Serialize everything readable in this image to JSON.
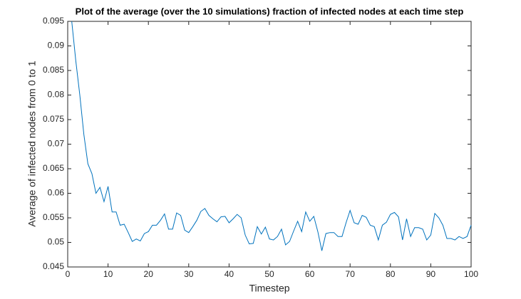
{
  "chart_data": {
    "type": "line",
    "title": "Plot of the average (over the 10 simulations) fraction of infected nodes at each time step",
    "x_label": "Timestep",
    "y_label": "Average of infected nodes from 0 to 1",
    "x": [
      1,
      2,
      3,
      4,
      5,
      6,
      7,
      8,
      9,
      10,
      11,
      12,
      13,
      14,
      15,
      16,
      17,
      18,
      19,
      20,
      21,
      22,
      23,
      24,
      25,
      26,
      27,
      28,
      29,
      30,
      31,
      32,
      33,
      34,
      35,
      36,
      37,
      38,
      39,
      40,
      41,
      42,
      43,
      44,
      45,
      46,
      47,
      48,
      49,
      50,
      51,
      52,
      53,
      54,
      55,
      56,
      57,
      58,
      59,
      60,
      61,
      62,
      63,
      64,
      65,
      66,
      67,
      68,
      69,
      70,
      71,
      72,
      73,
      74,
      75,
      76,
      77,
      78,
      79,
      80,
      81,
      82,
      83,
      84,
      85,
      86,
      87,
      88,
      89,
      90,
      91,
      92,
      93,
      94,
      95,
      96,
      97,
      98,
      99,
      100
    ],
    "series": [
      {
        "color": "#0072bd",
        "values": [
          0.095,
          0.087,
          0.08,
          0.072,
          0.066,
          0.064,
          0.06,
          0.0612,
          0.0583,
          0.0614,
          0.0562,
          0.0562,
          0.0535,
          0.0537,
          0.052,
          0.0502,
          0.0507,
          0.0503,
          0.0518,
          0.0522,
          0.0535,
          0.0535,
          0.0545,
          0.0558,
          0.0527,
          0.0527,
          0.056,
          0.0555,
          0.0525,
          0.052,
          0.0532,
          0.0545,
          0.0563,
          0.0569,
          0.0555,
          0.0548,
          0.0542,
          0.0552,
          0.0553,
          0.054,
          0.0548,
          0.0557,
          0.055,
          0.0515,
          0.0497,
          0.0498,
          0.0532,
          0.0517,
          0.0531,
          0.0507,
          0.0505,
          0.0512,
          0.0527,
          0.0495,
          0.0502,
          0.0523,
          0.0543,
          0.0522,
          0.0562,
          0.0543,
          0.0553,
          0.0522,
          0.0483,
          0.0518,
          0.052,
          0.052,
          0.0512,
          0.0512,
          0.054,
          0.0565,
          0.054,
          0.0537,
          0.0555,
          0.0551,
          0.0535,
          0.0532,
          0.0505,
          0.0535,
          0.0541,
          0.0557,
          0.0561,
          0.0552,
          0.0505,
          0.0548,
          0.0512,
          0.053,
          0.053,
          0.0527,
          0.0505,
          0.0515,
          0.0559,
          0.055,
          0.0535,
          0.0508,
          0.0508,
          0.0505,
          0.0512,
          0.0508,
          0.0512,
          0.0535
        ]
      }
    ],
    "xlim": [
      0,
      100
    ],
    "xticks": [
      0,
      10,
      20,
      30,
      40,
      50,
      60,
      70,
      80,
      90,
      100
    ],
    "ylim": [
      0.045,
      0.095
    ],
    "yticks": [
      0.045,
      0.05,
      0.055,
      0.06,
      0.065,
      0.07,
      0.075,
      0.08,
      0.085,
      0.09,
      0.095
    ]
  }
}
